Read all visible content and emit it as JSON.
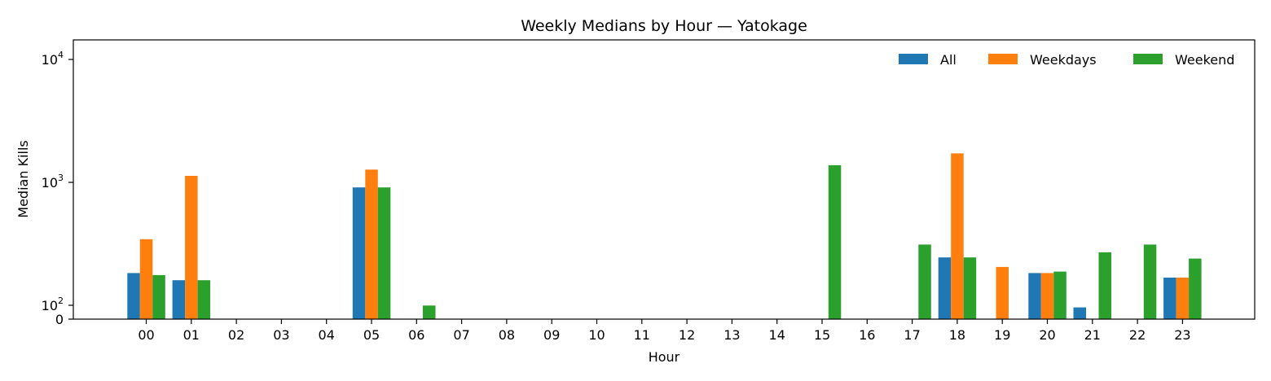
{
  "chart_data": {
    "type": "bar",
    "title": "Weekly Medians by Hour — Yatokage",
    "xlabel": "Hour",
    "ylabel": "Median Kills",
    "yscale": "symlog",
    "ylim": [
      0,
      14000
    ],
    "y_ticks": [
      {
        "value": 0,
        "base": "0",
        "exp": ""
      },
      {
        "value": 100,
        "base": "10",
        "exp": "2"
      },
      {
        "value": 1000,
        "base": "10",
        "exp": "3"
      },
      {
        "value": 10000,
        "base": "10",
        "exp": "4"
      }
    ],
    "categories": [
      "00",
      "01",
      "02",
      "03",
      "04",
      "05",
      "06",
      "07",
      "08",
      "09",
      "10",
      "11",
      "12",
      "13",
      "14",
      "15",
      "16",
      "17",
      "18",
      "19",
      "20",
      "21",
      "22",
      "23"
    ],
    "series": [
      {
        "name": "All",
        "color": "#1f77b4",
        "values": [
          183,
          160,
          0,
          0,
          0,
          910,
          0,
          0,
          0,
          0,
          0,
          0,
          0,
          0,
          0,
          0,
          0,
          0,
          245,
          0,
          183,
          85,
          0,
          168
        ]
      },
      {
        "name": "Weekdays",
        "color": "#ff7f0e",
        "values": [
          345,
          1130,
          0,
          0,
          0,
          1270,
          0,
          0,
          0,
          0,
          0,
          0,
          0,
          0,
          0,
          0,
          0,
          0,
          1720,
          205,
          183,
          0,
          0,
          168
        ]
      },
      {
        "name": "Weekend",
        "color": "#2ca02c",
        "values": [
          176,
          160,
          0,
          0,
          0,
          910,
          98,
          0,
          0,
          0,
          0,
          0,
          0,
          0,
          0,
          1380,
          0,
          312,
          245,
          0,
          188,
          270,
          312,
          240
        ]
      }
    ],
    "legend_position": "top-right",
    "grid": false
  }
}
